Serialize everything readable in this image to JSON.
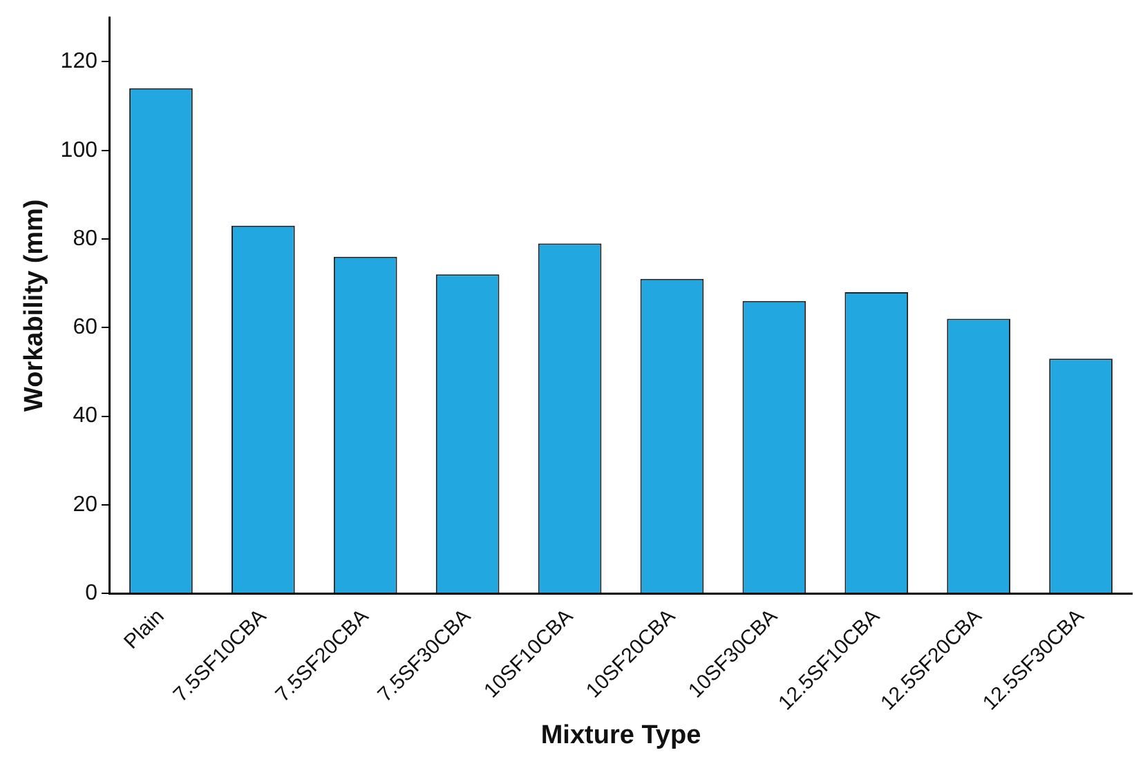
{
  "chart_data": {
    "type": "bar",
    "xlabel": "Mixture Type",
    "ylabel": "Workability (mm)",
    "categories": [
      "Plain",
      "7.5SF10CBA",
      "7.5SF20CBA",
      "7.5SF30CBA",
      "10SF10CBA",
      "10SF20CBA",
      "10SF30CBA",
      "12.5SF10CBA",
      "12.5SF20CBA",
      "12.5SF30CBA"
    ],
    "values": [
      114,
      83,
      76,
      72,
      79,
      71,
      66,
      68,
      62,
      53
    ],
    "color": "#22a7e0",
    "ylim": [
      0,
      130
    ],
    "yticks": [
      0,
      20,
      40,
      60,
      80,
      100,
      120
    ],
    "grid": false,
    "legend": false
  }
}
